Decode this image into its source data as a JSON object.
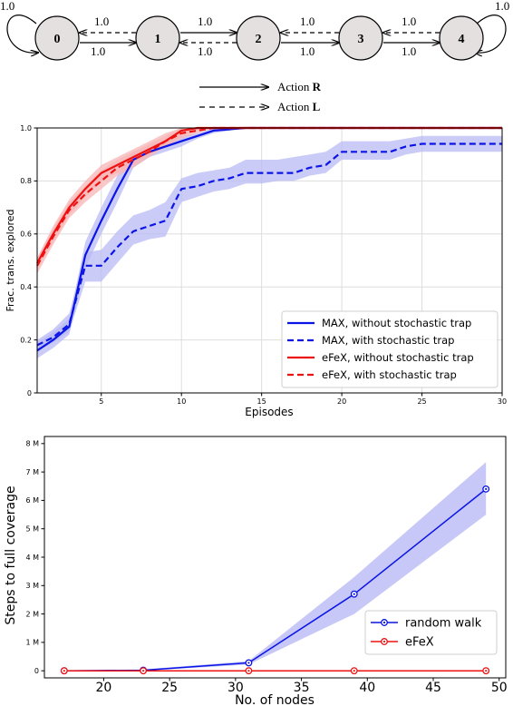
{
  "diagram": {
    "nodes": [
      "0",
      "1",
      "2",
      "3",
      "4"
    ],
    "edge_label": "1.0",
    "legend": {
      "right_label": "Action R",
      "right_bold": "R",
      "right_prefix": "Action ",
      "left_prefix": "Action ",
      "left_bold": "L"
    }
  },
  "colors": {
    "blue": "#0a14e6",
    "red": "#ee1111",
    "blue_band": "#b9b9f6",
    "red_band": "#f7b6b6",
    "node_fill": "#e4e0e0"
  },
  "chart_data": [
    {
      "type": "line",
      "xlabel": "Episodes",
      "ylabel": "Frac. trans. explored",
      "xlim": [
        1,
        30
      ],
      "ylim": [
        0,
        1
      ],
      "x_ticks": [
        5,
        10,
        15,
        20,
        25,
        30
      ],
      "y_ticks": [
        0,
        0.2,
        0.4,
        0.6,
        0.8,
        1.0
      ],
      "y_tick_labels": [
        "0",
        "0.2",
        "0.4",
        "0.6",
        "0.8",
        "1.0"
      ],
      "grid": true,
      "legend_position": "lower-right",
      "series": [
        {
          "name": "MAX, without stochastic trap",
          "color": "#0a14e6",
          "dash": false,
          "x": [
            1,
            2,
            3,
            4,
            5,
            6,
            7,
            8,
            9,
            10,
            11,
            12,
            13,
            14,
            15,
            16,
            17,
            18,
            19,
            20,
            21,
            22,
            23,
            24,
            25,
            26,
            27,
            28,
            29,
            30
          ],
          "y": [
            0.16,
            0.2,
            0.25,
            0.52,
            0.65,
            0.77,
            0.88,
            0.91,
            0.93,
            0.95,
            0.97,
            0.99,
            0.995,
            1.0,
            1.0,
            1.0,
            1.0,
            1.0,
            1.0,
            1.0,
            1.0,
            1.0,
            1.0,
            1.0,
            1.0,
            1.0,
            1.0,
            1.0,
            1.0,
            1.0
          ],
          "lo": [
            0.13,
            0.17,
            0.22,
            0.47,
            0.6,
            0.72,
            0.85,
            0.89,
            0.91,
            0.93,
            0.96,
            0.98,
            0.99,
            1.0,
            1.0,
            1.0,
            1.0,
            1.0,
            1.0,
            1.0,
            1.0,
            1.0,
            1.0,
            1.0,
            1.0,
            1.0,
            1.0,
            1.0,
            1.0,
            1.0
          ],
          "hi": [
            0.19,
            0.23,
            0.28,
            0.57,
            0.7,
            0.82,
            0.91,
            0.93,
            0.95,
            0.97,
            0.98,
            1.0,
            1.0,
            1.0,
            1.0,
            1.0,
            1.0,
            1.0,
            1.0,
            1.0,
            1.0,
            1.0,
            1.0,
            1.0,
            1.0,
            1.0,
            1.0,
            1.0,
            1.0,
            1.0
          ]
        },
        {
          "name": "MAX, with stochastic trap",
          "color": "#0a14e6",
          "dash": true,
          "x": [
            1,
            2,
            3,
            4,
            5,
            6,
            7,
            8,
            9,
            10,
            11,
            12,
            13,
            14,
            15,
            16,
            17,
            18,
            19,
            20,
            21,
            22,
            23,
            24,
            25,
            26,
            27,
            28,
            29,
            30
          ],
          "y": [
            0.18,
            0.21,
            0.26,
            0.48,
            0.48,
            0.55,
            0.61,
            0.63,
            0.65,
            0.77,
            0.78,
            0.8,
            0.81,
            0.83,
            0.83,
            0.83,
            0.83,
            0.85,
            0.86,
            0.91,
            0.91,
            0.91,
            0.91,
            0.93,
            0.94,
            0.94,
            0.94,
            0.94,
            0.94,
            0.94
          ],
          "lo": [
            0.16,
            0.19,
            0.23,
            0.42,
            0.42,
            0.49,
            0.56,
            0.58,
            0.59,
            0.72,
            0.74,
            0.76,
            0.77,
            0.79,
            0.79,
            0.8,
            0.8,
            0.82,
            0.83,
            0.88,
            0.88,
            0.88,
            0.88,
            0.9,
            0.91,
            0.91,
            0.91,
            0.91,
            0.91,
            0.91
          ],
          "hi": [
            0.2,
            0.24,
            0.3,
            0.53,
            0.54,
            0.61,
            0.67,
            0.69,
            0.72,
            0.81,
            0.83,
            0.84,
            0.85,
            0.88,
            0.88,
            0.88,
            0.89,
            0.9,
            0.91,
            0.95,
            0.95,
            0.95,
            0.95,
            0.96,
            0.97,
            0.97,
            0.97,
            0.97,
            0.97,
            0.97
          ]
        },
        {
          "name": "eFeX, without stochastic trap",
          "color": "#ee1111",
          "dash": false,
          "x": [
            1,
            2,
            3,
            4,
            5,
            6,
            7,
            8,
            9,
            10,
            11,
            12,
            13,
            14,
            15,
            16,
            17,
            18,
            19,
            20,
            21,
            22,
            23,
            24,
            25,
            26,
            27,
            28,
            29,
            30
          ],
          "y": [
            0.49,
            0.6,
            0.7,
            0.77,
            0.83,
            0.86,
            0.89,
            0.92,
            0.95,
            0.99,
            1.0,
            1.0,
            1.0,
            1.0,
            1.0,
            1.0,
            1.0,
            1.0,
            1.0,
            1.0,
            1.0,
            1.0,
            1.0,
            1.0,
            1.0,
            1.0,
            1.0,
            1.0,
            1.0,
            1.0
          ],
          "lo": [
            0.47,
            0.57,
            0.67,
            0.74,
            0.8,
            0.83,
            0.86,
            0.9,
            0.93,
            0.97,
            0.99,
            1.0,
            1.0,
            1.0,
            1.0,
            1.0,
            1.0,
            1.0,
            1.0,
            1.0,
            1.0,
            1.0,
            1.0,
            1.0,
            1.0,
            1.0,
            1.0,
            1.0,
            1.0,
            1.0
          ],
          "hi": [
            0.51,
            0.63,
            0.73,
            0.8,
            0.86,
            0.89,
            0.92,
            0.95,
            0.98,
            1.0,
            1.0,
            1.0,
            1.0,
            1.0,
            1.0,
            1.0,
            1.0,
            1.0,
            1.0,
            1.0,
            1.0,
            1.0,
            1.0,
            1.0,
            1.0,
            1.0,
            1.0,
            1.0,
            1.0,
            1.0
          ]
        },
        {
          "name": "eFeX, with stochastic trap",
          "color": "#ee1111",
          "dash": true,
          "x": [
            1,
            2,
            3,
            4,
            5,
            6,
            7,
            8,
            9,
            10,
            11,
            12,
            13,
            14,
            15,
            16,
            17,
            18,
            19,
            20,
            21,
            22,
            23,
            24,
            25,
            26,
            27,
            28,
            29,
            30
          ],
          "y": [
            0.48,
            0.59,
            0.69,
            0.75,
            0.8,
            0.85,
            0.88,
            0.91,
            0.95,
            0.98,
            0.99,
            1.0,
            1.0,
            1.0,
            1.0,
            1.0,
            1.0,
            1.0,
            1.0,
            1.0,
            1.0,
            1.0,
            1.0,
            1.0,
            1.0,
            1.0,
            1.0,
            1.0,
            1.0,
            1.0
          ],
          "lo": [
            0.45,
            0.56,
            0.66,
            0.72,
            0.77,
            0.82,
            0.85,
            0.89,
            0.93,
            0.96,
            0.98,
            1.0,
            1.0,
            1.0,
            1.0,
            1.0,
            1.0,
            1.0,
            1.0,
            1.0,
            1.0,
            1.0,
            1.0,
            1.0,
            1.0,
            1.0,
            1.0,
            1.0,
            1.0,
            1.0
          ],
          "hi": [
            0.51,
            0.62,
            0.72,
            0.78,
            0.84,
            0.88,
            0.91,
            0.94,
            0.97,
            1.0,
            1.0,
            1.0,
            1.0,
            1.0,
            1.0,
            1.0,
            1.0,
            1.0,
            1.0,
            1.0,
            1.0,
            1.0,
            1.0,
            1.0,
            1.0,
            1.0,
            1.0,
            1.0,
            1.0,
            1.0
          ]
        }
      ]
    },
    {
      "type": "line",
      "xlabel": "No. of nodes",
      "ylabel": "Steps to full coverage",
      "xlim": [
        15.5,
        50.5
      ],
      "ylim": [
        -0.25,
        8.25
      ],
      "x_ticks": [
        20,
        25,
        30,
        35,
        40,
        45,
        50
      ],
      "y_ticks": [
        0,
        1,
        2,
        3,
        4,
        5,
        6,
        7,
        8
      ],
      "y_tick_labels": [
        "0",
        "1 M",
        "2 M",
        "3 M",
        "4 M",
        "5 M",
        "6 M",
        "7 M",
        "8 M"
      ],
      "y_unit": "M",
      "grid": false,
      "legend_position": "lower-right",
      "series": [
        {
          "name": "random walk",
          "color": "#0a14e6",
          "x": [
            17,
            23,
            31,
            39,
            49
          ],
          "y": [
            0.0,
            0.02,
            0.28,
            2.7,
            6.4
          ],
          "lo": [
            0.0,
            0.0,
            0.22,
            2.0,
            5.5
          ],
          "hi": [
            0.0,
            0.05,
            0.34,
            3.3,
            7.35
          ]
        },
        {
          "name": "eFeX",
          "color": "#ee1111",
          "x": [
            17,
            23,
            31,
            39,
            49
          ],
          "y": [
            0.0,
            0.0,
            0.0,
            0.0,
            0.0
          ],
          "lo": [
            0.0,
            0.0,
            0.0,
            0.0,
            0.0
          ],
          "hi": [
            0.0,
            0.0,
            0.0,
            0.0,
            0.0
          ]
        }
      ]
    }
  ]
}
